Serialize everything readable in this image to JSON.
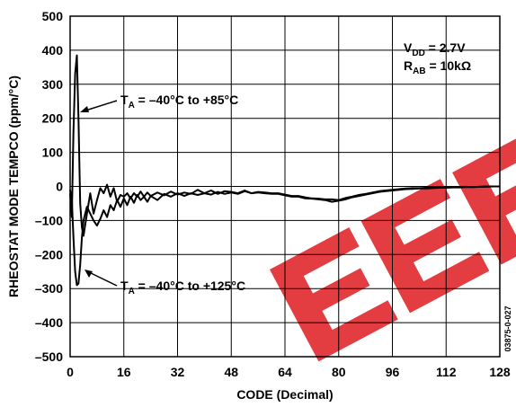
{
  "chart_data": {
    "type": "line",
    "title": "",
    "xlabel": "CODE (Decimal)",
    "ylabel": "RHEOSTAT MODE TEMPCO (ppm/°C)",
    "xlim": [
      0,
      128
    ],
    "ylim": [
      -500,
      500
    ],
    "grid": true,
    "x_ticks": [
      "0",
      "16",
      "32",
      "48",
      "64",
      "80",
      "96",
      "112",
      "128"
    ],
    "y_ticks": [
      "500",
      "400",
      "300",
      "200",
      "100",
      "0",
      "–100",
      "–200",
      "–300",
      "–400",
      "–500"
    ],
    "conditions": {
      "vdd": {
        "main": "V",
        "sub": "DD",
        "rest": " = 2.7V"
      },
      "rab": {
        "main": "R",
        "sub": "AB",
        "rest": " = 10kΩ"
      }
    },
    "series": [
      {
        "name": "TA = –40°C to +85°C",
        "label": {
          "main": "T",
          "sub": "A",
          "rest": " = –40°C to +85°C"
        },
        "color": "#000000",
        "points": [
          [
            0,
            -20
          ],
          [
            0.5,
            -90
          ],
          [
            1,
            160
          ],
          [
            1.5,
            330
          ],
          [
            2,
            385
          ],
          [
            2.5,
            200
          ],
          [
            3,
            -50
          ],
          [
            3.5,
            -120
          ],
          [
            4,
            -145
          ],
          [
            5,
            -80
          ],
          [
            6,
            -20
          ],
          [
            7,
            -80
          ],
          [
            8,
            -40
          ],
          [
            9,
            -5
          ],
          [
            10,
            -20
          ],
          [
            11,
            5
          ],
          [
            12,
            -30
          ],
          [
            13,
            -5
          ],
          [
            14,
            -45
          ],
          [
            15,
            -25
          ],
          [
            16,
            -30
          ],
          [
            17,
            -20
          ],
          [
            18,
            -35
          ],
          [
            19,
            -20
          ],
          [
            20,
            -30
          ],
          [
            21,
            -15
          ],
          [
            22,
            -30
          ],
          [
            23,
            -18
          ],
          [
            24,
            -28
          ],
          [
            26,
            -18
          ],
          [
            28,
            -26
          ],
          [
            30,
            -15
          ],
          [
            32,
            -24
          ],
          [
            34,
            -18
          ],
          [
            36,
            -22
          ],
          [
            38,
            -10
          ],
          [
            40,
            -20
          ],
          [
            42,
            -12
          ],
          [
            44,
            -22
          ],
          [
            46,
            -14
          ],
          [
            48,
            -16
          ],
          [
            50,
            -20
          ],
          [
            52,
            -12
          ],
          [
            54,
            -20
          ],
          [
            56,
            -16
          ],
          [
            58,
            -18
          ],
          [
            60,
            -20
          ],
          [
            62,
            -20
          ],
          [
            64,
            -24
          ],
          [
            66,
            -28
          ],
          [
            68,
            -28
          ],
          [
            70,
            -32
          ],
          [
            72,
            -35
          ],
          [
            74,
            -36
          ],
          [
            76,
            -38
          ],
          [
            78,
            -38
          ],
          [
            80,
            -40
          ],
          [
            82,
            -34
          ],
          [
            84,
            -30
          ],
          [
            86,
            -25
          ],
          [
            88,
            -22
          ],
          [
            90,
            -18
          ],
          [
            92,
            -14
          ],
          [
            94,
            -12
          ],
          [
            96,
            -10
          ],
          [
            98,
            -8
          ],
          [
            100,
            -6
          ],
          [
            102,
            -5
          ],
          [
            104,
            -5
          ],
          [
            106,
            -4
          ],
          [
            108,
            -4
          ],
          [
            110,
            -3
          ],
          [
            112,
            -3
          ],
          [
            114,
            -2
          ],
          [
            116,
            -2
          ],
          [
            118,
            -1
          ],
          [
            120,
            -2
          ],
          [
            122,
            -1
          ],
          [
            124,
            0
          ],
          [
            126,
            0
          ],
          [
            128,
            0
          ]
        ]
      },
      {
        "name": "TA = –40°C to +125°C",
        "label": {
          "main": "T",
          "sub": "A",
          "rest": " = –40°C to +125°C"
        },
        "color": "#000000",
        "points": [
          [
            0,
            -10
          ],
          [
            0.5,
            -40
          ],
          [
            1,
            -150
          ],
          [
            1.5,
            -250
          ],
          [
            2,
            -290
          ],
          [
            2.5,
            -285
          ],
          [
            3,
            -230
          ],
          [
            3.5,
            -150
          ],
          [
            4,
            -100
          ],
          [
            5,
            -60
          ],
          [
            6,
            -80
          ],
          [
            7,
            -100
          ],
          [
            8,
            -115
          ],
          [
            9,
            -95
          ],
          [
            10,
            -70
          ],
          [
            11,
            -90
          ],
          [
            12,
            -55
          ],
          [
            13,
            -70
          ],
          [
            14,
            -40
          ],
          [
            15,
            -60
          ],
          [
            16,
            -35
          ],
          [
            17,
            -55
          ],
          [
            18,
            -30
          ],
          [
            19,
            -48
          ],
          [
            20,
            -25
          ],
          [
            21,
            -40
          ],
          [
            22,
            -30
          ],
          [
            23,
            -45
          ],
          [
            24,
            -28
          ],
          [
            26,
            -40
          ],
          [
            28,
            -22
          ],
          [
            30,
            -30
          ],
          [
            32,
            -20
          ],
          [
            34,
            -28
          ],
          [
            36,
            -20
          ],
          [
            38,
            -25
          ],
          [
            40,
            -20
          ],
          [
            42,
            -24
          ],
          [
            44,
            -16
          ],
          [
            46,
            -22
          ],
          [
            48,
            -18
          ],
          [
            50,
            -22
          ],
          [
            52,
            -14
          ],
          [
            54,
            -20
          ],
          [
            56,
            -18
          ],
          [
            58,
            -20
          ],
          [
            60,
            -22
          ],
          [
            62,
            -22
          ],
          [
            64,
            -26
          ],
          [
            66,
            -30
          ],
          [
            68,
            -30
          ],
          [
            70,
            -35
          ],
          [
            72,
            -36
          ],
          [
            74,
            -38
          ],
          [
            76,
            -40
          ],
          [
            78,
            -45
          ],
          [
            80,
            -42
          ],
          [
            82,
            -38
          ],
          [
            84,
            -32
          ],
          [
            86,
            -28
          ],
          [
            88,
            -24
          ],
          [
            90,
            -20
          ],
          [
            92,
            -16
          ],
          [
            94,
            -14
          ],
          [
            96,
            -12
          ],
          [
            98,
            -10
          ],
          [
            100,
            -8
          ],
          [
            102,
            -7
          ],
          [
            104,
            -6
          ],
          [
            106,
            -6
          ],
          [
            108,
            -5
          ],
          [
            110,
            -4
          ],
          [
            112,
            -4
          ],
          [
            114,
            -3
          ],
          [
            116,
            -3
          ],
          [
            118,
            -2
          ],
          [
            120,
            -2
          ],
          [
            122,
            -1
          ],
          [
            124,
            -1
          ],
          [
            126,
            0
          ],
          [
            128,
            0
          ]
        ]
      }
    ],
    "side_code": "03875-0-027",
    "watermark_color": "#e0282d"
  }
}
